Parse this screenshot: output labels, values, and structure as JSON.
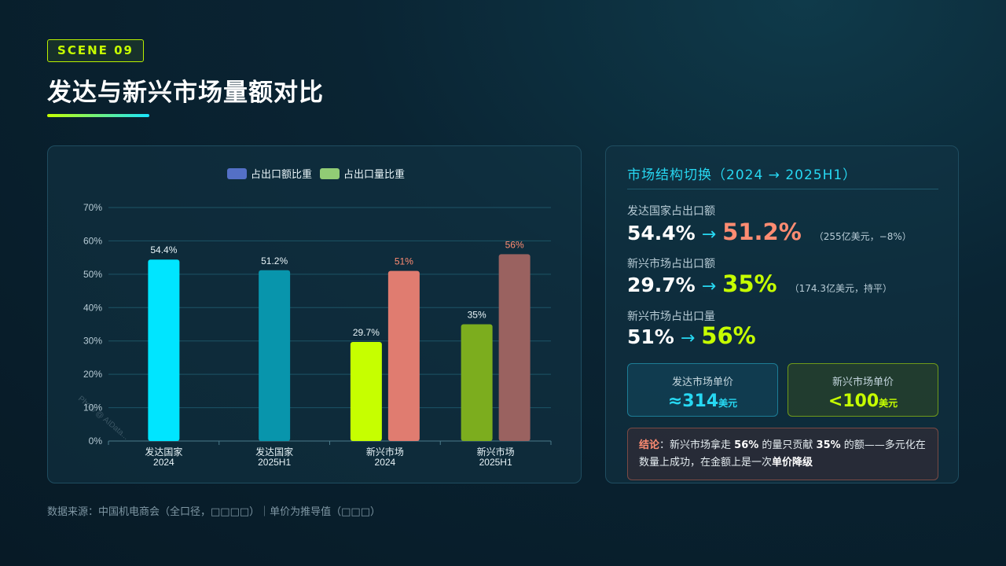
{
  "scene_badge": "SCENE 09",
  "page_title": "发达与新兴市场量额对比",
  "colors": {
    "accent_lime": "#c6ff00",
    "accent_cyan": "#27d8f2",
    "accent_salmon": "#ff8c72"
  },
  "chart_data": {
    "type": "bar",
    "categories": [
      [
        "发达国家",
        "2024"
      ],
      [
        "发达国家",
        "2025H1"
      ],
      [
        "新兴市场",
        "2024"
      ],
      [
        "新兴市场",
        "2025H1"
      ]
    ],
    "series": [
      {
        "name": "占出口额比重",
        "legend_color": "#5470c6",
        "values": [
          54.4,
          51.2,
          29.7,
          35
        ],
        "labels": [
          "54.4%",
          "51.2%",
          "29.7%",
          "35%"
        ],
        "bar_colors": [
          "#00e5ff",
          "#0895ac",
          "#c6ff00",
          "#7cad1e"
        ]
      },
      {
        "name": "占出口量比重",
        "legend_color": "#91cc75",
        "values": [
          null,
          null,
          51,
          56
        ],
        "labels": [
          "",
          "",
          "51%",
          "56%"
        ],
        "bar_colors": [
          "#e07c70",
          "#e07c70",
          "#e07c70",
          "#9a6260"
        ]
      }
    ],
    "y_ticks": [
      "0%",
      "10%",
      "20%",
      "30%",
      "40%",
      "50%",
      "60%",
      "70%"
    ],
    "ylim": [
      0,
      70
    ],
    "grid": true,
    "legend_position": "top-center",
    "watermark": "Photo @ AIData..."
  },
  "info": {
    "heading": "市场结构切换（2024 → 2025H1）",
    "metrics": [
      {
        "label": "发达国家占出口额",
        "from": "54.4%",
        "arrow": "→",
        "to": "51.2%",
        "to_color": "#ff8c72",
        "note": "（255亿美元，−8%）"
      },
      {
        "label": "新兴市场占出口额",
        "from": "29.7%",
        "arrow": "→",
        "to": "35%",
        "to_color": "#c6ff00",
        "note": "（174.3亿美元，持平）"
      },
      {
        "label": "新兴市场占出口量",
        "from": "51%",
        "arrow": "→",
        "to": "56%",
        "to_color": "#c6ff00",
        "note": ""
      }
    ],
    "price_cards": {
      "developed": {
        "label": "发达市场单价",
        "value": "≈314",
        "unit": "美元"
      },
      "emerging": {
        "label": "新兴市场单价",
        "value": "<100",
        "unit": "美元"
      }
    },
    "conclusion": {
      "key": "结论",
      "t1": "：新兴市场拿走 ",
      "b1": "56%",
      "t2": " 的量只贡献 ",
      "b2": "35%",
      "t3": " 的额——多元化在数量上成功，在金额上是一次",
      "b3": "单价降级"
    }
  },
  "footer": "数据来源：中国机电商会（全口径，□□□□）｜单价为推导值（□□□）"
}
